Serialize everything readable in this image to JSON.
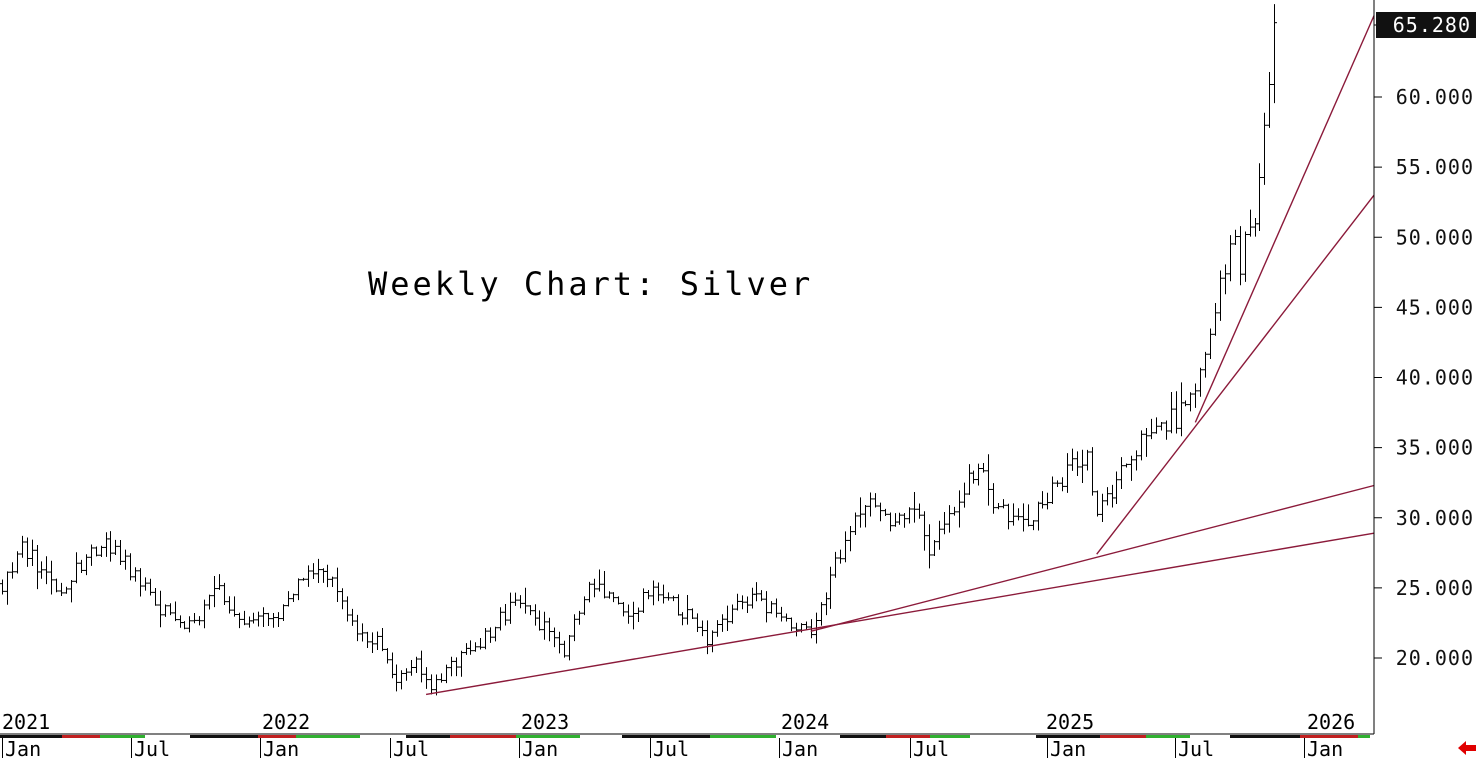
{
  "chart_data": {
    "type": "ohlc",
    "title": "Weekly Chart: Silver",
    "last_price": "65.280",
    "y_ticks": [
      "20.000",
      "25.000",
      "30.000",
      "35.000",
      "40.000",
      "45.000",
      "50.000",
      "55.000",
      "60.000"
    ],
    "ylim": [
      15.0,
      66.0
    ],
    "year_labels": [
      "2021",
      "2022",
      "2023",
      "2024",
      "2025",
      "2026"
    ],
    "month_labels": [
      "Jan",
      "Jul",
      "Jan",
      "Jul",
      "Jan",
      "Jul",
      "Jan",
      "Jul",
      "Jan",
      "Jul",
      "Jan"
    ],
    "price_path": [
      [
        "2021-01-04",
        25.3
      ],
      [
        "2021-02-01",
        27.9
      ],
      [
        "2021-03-29",
        24.6
      ],
      [
        "2021-05-10",
        27.8
      ],
      [
        "2021-06-07",
        28.0
      ],
      [
        "2021-07-19",
        25.5
      ],
      [
        "2021-08-16",
        23.5
      ],
      [
        "2021-09-27",
        22.2
      ],
      [
        "2021-11-08",
        25.0
      ],
      [
        "2021-12-13",
        22.0
      ],
      [
        "2022-02-07",
        23.5
      ],
      [
        "2022-03-07",
        26.2
      ],
      [
        "2022-04-18",
        25.5
      ],
      [
        "2022-05-23",
        21.8
      ],
      [
        "2022-06-20",
        21.2
      ],
      [
        "2022-07-18",
        18.6
      ],
      [
        "2022-08-15",
        20.0
      ],
      [
        "2022-09-05",
        17.8
      ],
      [
        "2022-10-03",
        19.5
      ],
      [
        "2022-11-21",
        21.5
      ],
      [
        "2023-01-02",
        24.0
      ],
      [
        "2023-02-20",
        21.8
      ],
      [
        "2023-03-13",
        20.3
      ],
      [
        "2023-04-17",
        25.5
      ],
      [
        "2023-06-12",
        23.0
      ],
      [
        "2023-07-17",
        24.9
      ],
      [
        "2023-09-04",
        23.0
      ],
      [
        "2023-10-02",
        21.2
      ],
      [
        "2023-11-20",
        24.0
      ],
      [
        "2023-12-04",
        24.5
      ],
      [
        "2024-01-22",
        22.5
      ],
      [
        "2024-02-26",
        22.0
      ],
      [
        "2024-04-08",
        27.5
      ],
      [
        "2024-05-20",
        31.5
      ],
      [
        "2024-06-17",
        29.5
      ],
      [
        "2024-07-22",
        31.0
      ],
      [
        "2024-08-12",
        27.5
      ],
      [
        "2024-10-21",
        34.0
      ],
      [
        "2024-11-18",
        30.5
      ],
      [
        "2024-12-23",
        29.5
      ],
      [
        "2025-02-10",
        32.5
      ],
      [
        "2025-03-24",
        34.5
      ],
      [
        "2025-04-07",
        30.0
      ],
      [
        "2025-05-05",
        32.5
      ],
      [
        "2025-06-16",
        36.5
      ],
      [
        "2025-07-28",
        37.0
      ],
      [
        "2025-08-18",
        38.5
      ],
      [
        "2025-09-22",
        44.0
      ],
      [
        "2025-10-13",
        50.5
      ],
      [
        "2025-10-27",
        48.2
      ],
      [
        "2025-11-17",
        51.5
      ],
      [
        "2025-12-08",
        61.5
      ],
      [
        "2025-12-15",
        65.3
      ]
    ],
    "trendlines": [
      {
        "from": [
          "2022-08-29",
          17.4
        ],
        "to": [
          "2024-02-26",
          21.9
        ],
        "to_edge": 28.9
      },
      {
        "from": [
          "2024-02-26",
          21.9
        ],
        "to": [
          "2025-04-07",
          27.4
        ],
        "to_edge": 32.3
      },
      {
        "from": [
          "2025-04-07",
          27.4
        ],
        "to": [
          "2025-08-25",
          36.8
        ],
        "to_edge": 53.0
      },
      {
        "from": [
          "2025-08-25",
          36.8
        ],
        "to": [
          "2025-11-03",
          48.0
        ],
        "to_edge": 65.8
      }
    ],
    "colors": {
      "bars": "#000000",
      "trendlines": "#8b1a3a",
      "last_price_bg": "#000000"
    },
    "grid": false,
    "arrow_icon": "left-arrow-icon"
  }
}
